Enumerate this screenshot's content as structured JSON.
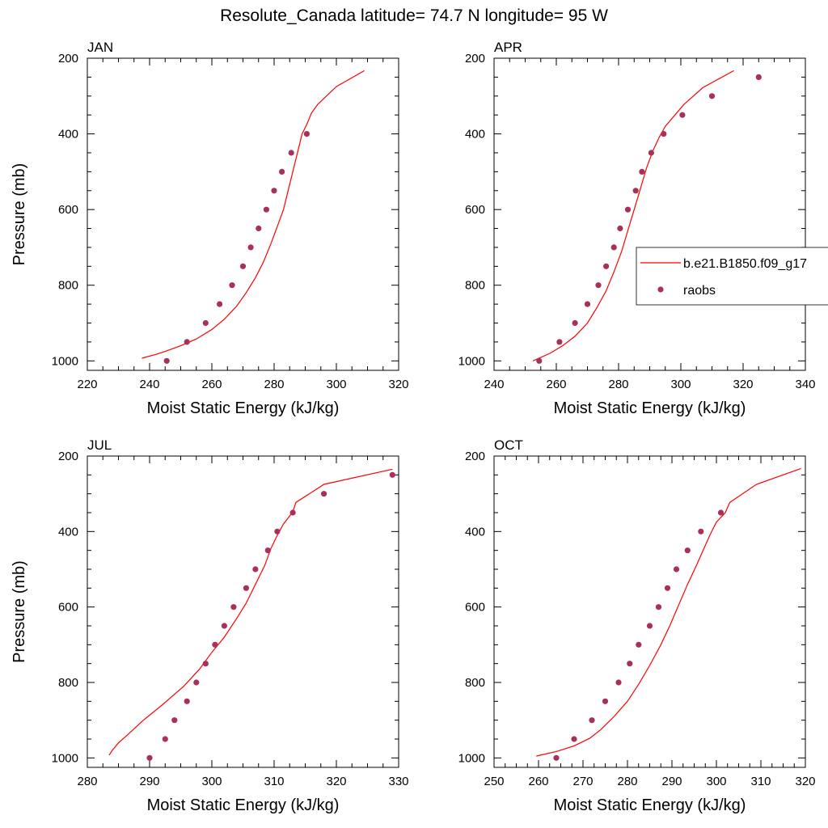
{
  "figure": {
    "title": "Resolute_Canada  latitude= 74.7 N longitude= 95 W",
    "legend": {
      "model_label": "b.e21.B1850.f09_g17",
      "obs_label": "raobs",
      "placement": "right-middle of APR panel"
    }
  },
  "colors": {
    "model_line": "#ff0000",
    "obs_marker": "#a8305a",
    "axis": "#000000",
    "background": "#ffffff"
  },
  "chart_data": [
    {
      "type": "line",
      "panel": "JAN",
      "title": "JAN",
      "xlabel": "Moist Static Energy (kJ/kg)",
      "ylabel": "Pressure (mb)",
      "xlim": [
        220,
        320
      ],
      "ylim": [
        1025,
        200
      ],
      "y_inverted": true,
      "xticks": [
        220,
        240,
        260,
        280,
        300,
        320
      ],
      "yticks": [
        200,
        400,
        600,
        800,
        1000
      ],
      "series": [
        {
          "name": "b.e21.B1850.f09_g17",
          "style": "line",
          "points": [
            [
              237.5,
              993
            ],
            [
              242,
              983
            ],
            [
              245,
              975
            ],
            [
              250,
              960
            ],
            [
              255,
              942
            ],
            [
              260,
              917
            ],
            [
              264,
              890
            ],
            [
              268,
              855
            ],
            [
              271,
              820
            ],
            [
              274,
              780
            ],
            [
              276.5,
              740
            ],
            [
              279,
              690
            ],
            [
              281,
              645
            ],
            [
              283,
              600
            ],
            [
              284.5,
              550
            ],
            [
              286,
              500
            ],
            [
              287.5,
              450
            ],
            [
              289,
              400
            ],
            [
              290.5,
              375
            ],
            [
              292,
              345
            ],
            [
              294,
              322
            ],
            [
              300,
              275
            ],
            [
              309,
              233
            ]
          ]
        },
        {
          "name": "raobs",
          "style": "markers",
          "points": [
            [
              245.5,
              1000
            ],
            [
              252,
              950
            ],
            [
              258,
              900
            ],
            [
              262.5,
              850
            ],
            [
              266.5,
              800
            ],
            [
              270,
              750
            ],
            [
              272.5,
              700
            ],
            [
              275,
              650
            ],
            [
              277.5,
              600
            ],
            [
              280,
              550
            ],
            [
              282.5,
              500
            ],
            [
              285.5,
              450
            ],
            [
              290.5,
              400
            ]
          ]
        }
      ]
    },
    {
      "type": "line",
      "panel": "APR",
      "title": "APR",
      "xlabel": "Moist Static Energy (kJ/kg)",
      "ylabel": "",
      "xlim": [
        240,
        340
      ],
      "ylim": [
        1025,
        200
      ],
      "y_inverted": true,
      "xticks": [
        240,
        260,
        280,
        300,
        320,
        340
      ],
      "yticks": [
        200,
        400,
        600,
        800,
        1000
      ],
      "series": [
        {
          "name": "b.e21.B1850.f09_g17",
          "style": "line",
          "points": [
            [
              252.5,
              1000
            ],
            [
              258,
              980
            ],
            [
              262,
              960
            ],
            [
              266,
              935
            ],
            [
              270,
              900
            ],
            [
              273,
              860
            ],
            [
              276,
              815
            ],
            [
              278.5,
              765
            ],
            [
              281,
              710
            ],
            [
              283,
              655
            ],
            [
              285,
              600
            ],
            [
              287,
              545
            ],
            [
              289,
              490
            ],
            [
              291,
              445
            ],
            [
              293,
              410
            ],
            [
              295,
              380
            ],
            [
              301,
              322
            ],
            [
              307,
              278
            ],
            [
              317,
              233
            ]
          ]
        },
        {
          "name": "raobs",
          "style": "markers",
          "points": [
            [
              254.5,
              1000
            ],
            [
              261,
              950
            ],
            [
              266,
              900
            ],
            [
              270,
              850
            ],
            [
              273.5,
              800
            ],
            [
              276,
              750
            ],
            [
              278.5,
              700
            ],
            [
              280.5,
              650
            ],
            [
              283,
              600
            ],
            [
              285.5,
              550
            ],
            [
              287.5,
              500
            ],
            [
              290.5,
              450
            ],
            [
              294.5,
              400
            ],
            [
              300.5,
              350
            ],
            [
              310,
              300
            ],
            [
              325,
              250
            ]
          ]
        }
      ]
    },
    {
      "type": "line",
      "panel": "JUL",
      "title": "JUL",
      "xlabel": "Moist Static Energy (kJ/kg)",
      "ylabel": "Pressure (mb)",
      "xlim": [
        280,
        330
      ],
      "ylim": [
        1025,
        200
      ],
      "y_inverted": true,
      "xticks": [
        280,
        290,
        300,
        310,
        320,
        330
      ],
      "yticks": [
        200,
        400,
        600,
        800,
        1000
      ],
      "series": [
        {
          "name": "b.e21.B1850.f09_g17",
          "style": "line",
          "points": [
            [
              283.5,
              993
            ],
            [
              284,
              980
            ],
            [
              285,
              960
            ],
            [
              286.5,
              938
            ],
            [
              289,
              900
            ],
            [
              292,
              860
            ],
            [
              295.5,
              810
            ],
            [
              298,
              765
            ],
            [
              300,
              720
            ],
            [
              302,
              680
            ],
            [
              304,
              630
            ],
            [
              305.5,
              590
            ],
            [
              307,
              540
            ],
            [
              308.5,
              490
            ],
            [
              309.5,
              445
            ],
            [
              310.5,
              410
            ],
            [
              311.5,
              380
            ],
            [
              313,
              348
            ],
            [
              313.5,
              323
            ],
            [
              318,
              275
            ],
            [
              329,
              235
            ]
          ]
        },
        {
          "name": "raobs",
          "style": "markers",
          "points": [
            [
              290,
              1000
            ],
            [
              292.5,
              950
            ],
            [
              294,
              900
            ],
            [
              296,
              850
            ],
            [
              297.5,
              800
            ],
            [
              299,
              750
            ],
            [
              300.5,
              700
            ],
            [
              302,
              650
            ],
            [
              303.5,
              600
            ],
            [
              305.5,
              550
            ],
            [
              307,
              500
            ],
            [
              309,
              450
            ],
            [
              310.5,
              400
            ],
            [
              313,
              350
            ],
            [
              318,
              300
            ],
            [
              329,
              250
            ]
          ]
        }
      ]
    },
    {
      "type": "line",
      "panel": "OCT",
      "title": "OCT",
      "xlabel": "Moist Static Energy (kJ/kg)",
      "ylabel": "",
      "xlim": [
        250,
        320
      ],
      "ylim": [
        1025,
        200
      ],
      "y_inverted": true,
      "xticks": [
        250,
        260,
        270,
        280,
        290,
        300,
        310,
        320
      ],
      "yticks": [
        200,
        400,
        600,
        800,
        1000
      ],
      "series": [
        {
          "name": "b.e21.B1850.f09_g17",
          "style": "line",
          "points": [
            [
              259.5,
              995
            ],
            [
              264,
              983
            ],
            [
              268,
              968
            ],
            [
              271.5,
              948
            ],
            [
              274,
              925
            ],
            [
              277,
              890
            ],
            [
              280,
              850
            ],
            [
              282.5,
              805
            ],
            [
              285,
              755
            ],
            [
              287.5,
              700
            ],
            [
              289.5,
              650
            ],
            [
              291.5,
              595
            ],
            [
              293.5,
              540
            ],
            [
              295.5,
              490
            ],
            [
              297,
              450
            ],
            [
              298.5,
              410
            ],
            [
              300,
              375
            ],
            [
              302,
              350
            ],
            [
              303,
              323
            ],
            [
              309,
              275
            ],
            [
              319,
              233
            ]
          ]
        },
        {
          "name": "raobs",
          "style": "markers",
          "points": [
            [
              264,
              1000
            ],
            [
              268,
              950
            ],
            [
              272,
              900
            ],
            [
              275,
              850
            ],
            [
              278,
              800
            ],
            [
              280.5,
              750
            ],
            [
              282.5,
              700
            ],
            [
              285,
              650
            ],
            [
              287,
              600
            ],
            [
              289,
              550
            ],
            [
              291,
              500
            ],
            [
              293.5,
              450
            ],
            [
              296.5,
              400
            ],
            [
              301,
              350
            ]
          ]
        }
      ]
    }
  ]
}
